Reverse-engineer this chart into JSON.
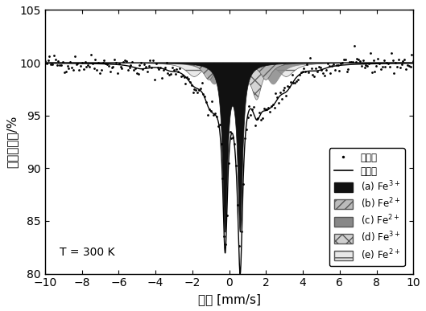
{
  "xlabel": "速度 [mm/s]",
  "ylabel": "相对透射率/%",
  "xlim": [
    -10,
    10
  ],
  "ylim": [
    80,
    105
  ],
  "yticks": [
    80,
    85,
    90,
    95,
    100,
    105
  ],
  "xticks": [
    -10,
    -8,
    -6,
    -4,
    -2,
    0,
    2,
    4,
    6,
    8,
    10
  ],
  "annotation": "T = 300 K",
  "background": "#ffffff"
}
